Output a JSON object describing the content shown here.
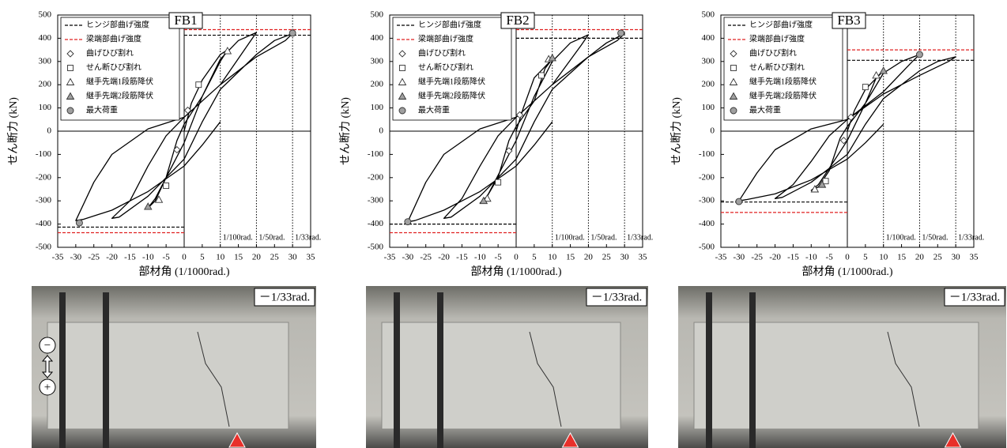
{
  "chart_data": [
    {
      "type": "hysteresis",
      "title": "FB1",
      "xlabel": "部材角 (1/1000rad.)",
      "ylabel": "せん断力 (kN)",
      "xlim": [
        -35,
        35
      ],
      "xticks": [
        -35,
        -30,
        -25,
        -20,
        -15,
        -10,
        -5,
        0,
        5,
        10,
        15,
        20,
        25,
        30,
        35
      ],
      "ylim": [
        -500,
        500
      ],
      "yticks": [
        -500,
        -400,
        -300,
        -200,
        -100,
        0,
        100,
        200,
        300,
        400,
        500
      ],
      "ref_lines": [
        {
          "name": "ヒンジ部曲げ強度",
          "color": "#000000",
          "values": [
            413,
            -413
          ]
        },
        {
          "name": "梁端部曲げ強度",
          "color": "#e02020",
          "values": [
            437,
            -437
          ]
        }
      ],
      "vlines": [
        {
          "x": 10,
          "label": "1/100rad."
        },
        {
          "x": 20,
          "label": "1/50rad."
        },
        {
          "x": 30,
          "label": "1/33rad."
        }
      ],
      "curve": {
        "color": "#000000",
        "x": [
          0,
          2,
          5,
          10,
          12,
          10,
          5,
          0,
          -2,
          -5,
          -8,
          -10,
          -8,
          -5,
          0,
          5,
          10,
          15,
          20,
          18,
          10,
          0,
          -5,
          -10,
          -15,
          -20,
          -18,
          -10,
          0,
          5,
          10,
          20,
          25,
          30,
          28,
          20,
          10,
          0,
          -10,
          -20,
          -25,
          -30,
          -28,
          -20,
          -10,
          0,
          5,
          10
        ],
        "values": [
          0,
          120,
          220,
          330,
          350,
          300,
          150,
          30,
          -40,
          -200,
          -290,
          -330,
          -300,
          -200,
          -50,
          150,
          310,
          390,
          425,
          380,
          200,
          60,
          -20,
          -150,
          -300,
          -375,
          -370,
          -280,
          -120,
          40,
          180,
          330,
          390,
          420,
          390,
          320,
          200,
          60,
          10,
          -100,
          -220,
          -385,
          -380,
          -340,
          -260,
          -150,
          -60,
          40
        ]
      },
      "series": [
        {
          "name": "曲げひび割れ",
          "marker": "diamond",
          "color": "#ffffff",
          "x": [
            1,
            -2
          ],
          "values": [
            90,
            -80
          ]
        },
        {
          "name": "せん断ひび割れ",
          "marker": "square",
          "color": "#ffffff",
          "x": [
            4,
            -5
          ],
          "values": [
            200,
            -235
          ]
        },
        {
          "name": "継手先端1段筋降伏",
          "marker": "triangle",
          "color": "#ffffff",
          "x": [
            12,
            -7
          ],
          "values": [
            345,
            -295
          ]
        },
        {
          "name": "継手先端2段筋降伏",
          "marker": "triangle",
          "color": "#a0a0a0",
          "x": [
            -10
          ],
          "values": [
            -325
          ]
        },
        {
          "name": "最大荷重",
          "marker": "circle",
          "color": "#a0a0a0",
          "x": [
            30,
            -29
          ],
          "values": [
            422,
            -395
          ]
        }
      ]
    },
    {
      "type": "hysteresis",
      "title": "FB2",
      "xlabel": "部材角 (1/1000rad.)",
      "ylabel": "せん断力 (kN)",
      "xlim": [
        -35,
        35
      ],
      "xticks": [
        -35,
        -30,
        -25,
        -20,
        -15,
        -10,
        -5,
        0,
        5,
        10,
        15,
        20,
        25,
        30,
        35
      ],
      "ylim": [
        -500,
        500
      ],
      "yticks": [
        -500,
        -400,
        -300,
        -200,
        -100,
        0,
        100,
        200,
        300,
        400,
        500
      ],
      "ref_lines": [
        {
          "name": "ヒンジ部曲げ強度",
          "color": "#000000",
          "values": [
            400,
            -400
          ]
        },
        {
          "name": "梁端部曲げ強度",
          "color": "#e02020",
          "values": [
            437,
            -437
          ]
        }
      ],
      "vlines": [
        {
          "x": 10,
          "label": "1/100rad."
        },
        {
          "x": 20,
          "label": "1/50rad."
        },
        {
          "x": 30,
          "label": "1/33rad."
        }
      ],
      "curve": {
        "color": "#000000",
        "x": [
          0,
          2,
          5,
          10,
          8,
          5,
          0,
          -2,
          -5,
          -8,
          -10,
          -8,
          -5,
          0,
          5,
          10,
          15,
          20,
          18,
          10,
          0,
          -5,
          -10,
          -15,
          -20,
          -18,
          -10,
          0,
          5,
          10,
          20,
          25,
          30,
          28,
          20,
          10,
          0,
          -10,
          -20,
          -25,
          -30,
          -28,
          -20,
          -10,
          0,
          5,
          10
        ],
        "values": [
          0,
          100,
          230,
          310,
          270,
          130,
          20,
          -40,
          -200,
          -280,
          -310,
          -280,
          -190,
          -40,
          150,
          300,
          380,
          415,
          370,
          200,
          60,
          -20,
          -150,
          -290,
          -375,
          -370,
          -280,
          -120,
          40,
          180,
          320,
          380,
          420,
          390,
          320,
          200,
          60,
          10,
          -100,
          -220,
          -390,
          -385,
          -340,
          -260,
          -150,
          -60,
          40
        ]
      },
      "series": [
        {
          "name": "曲げひび割れ",
          "marker": "diamond",
          "color": "#ffffff",
          "x": [
            1,
            -2
          ],
          "values": [
            70,
            -85
          ]
        },
        {
          "name": "せん断ひび割れ",
          "marker": "square",
          "color": "#ffffff",
          "x": [
            7,
            -5
          ],
          "values": [
            240,
            -220
          ]
        },
        {
          "name": "継手先端1段筋降伏",
          "marker": "triangle",
          "color": "#ffffff",
          "x": [
            9,
            -8
          ],
          "values": [
            310,
            -290
          ]
        },
        {
          "name": "継手先端2段筋降伏",
          "marker": "triangle",
          "color": "#a0a0a0",
          "x": [
            10,
            -9
          ],
          "values": [
            315,
            -300
          ]
        },
        {
          "name": "最大荷重",
          "marker": "circle",
          "color": "#a0a0a0",
          "x": [
            29,
            -30
          ],
          "values": [
            422,
            -390
          ]
        }
      ]
    },
    {
      "type": "hysteresis",
      "title": "FB3",
      "xlabel": "部材角 (1/1000rad.)",
      "ylabel": "せん断力 (kN)",
      "xlim": [
        -35,
        35
      ],
      "xticks": [
        -35,
        -30,
        -25,
        -20,
        -15,
        -10,
        -5,
        0,
        5,
        10,
        15,
        20,
        25,
        30,
        35
      ],
      "ylim": [
        -500,
        500
      ],
      "yticks": [
        -500,
        -400,
        -300,
        -200,
        -100,
        0,
        100,
        200,
        300,
        400,
        500
      ],
      "ref_lines": [
        {
          "name": "ヒンジ部曲げ強度",
          "color": "#000000",
          "values": [
            305,
            -305
          ]
        },
        {
          "name": "梁端部曲げ強度",
          "color": "#e02020",
          "values": [
            350,
            -350
          ]
        }
      ],
      "vlines": [
        {
          "x": 10,
          "label": "1/100rad."
        },
        {
          "x": 20,
          "label": "1/50rad."
        },
        {
          "x": 30,
          "label": "1/33rad."
        }
      ],
      "curve": {
        "color": "#000000",
        "x": [
          0,
          2,
          5,
          10,
          8,
          5,
          0,
          -2,
          -5,
          -8,
          -10,
          -8,
          -5,
          0,
          5,
          10,
          15,
          20,
          18,
          10,
          0,
          -5,
          -10,
          -15,
          -20,
          -18,
          -10,
          0,
          5,
          10,
          20,
          25,
          30,
          28,
          20,
          10,
          0,
          -10,
          -20,
          -25,
          -30,
          -28,
          -20,
          -10,
          0,
          5,
          10
        ],
        "values": [
          0,
          90,
          180,
          260,
          230,
          120,
          20,
          -30,
          -170,
          -240,
          -255,
          -230,
          -160,
          -40,
          120,
          250,
          300,
          330,
          300,
          170,
          50,
          -20,
          -130,
          -230,
          -290,
          -285,
          -220,
          -100,
          30,
          140,
          260,
          300,
          320,
          300,
          240,
          160,
          50,
          10,
          -80,
          -180,
          -300,
          -295,
          -270,
          -210,
          -120,
          -50,
          30
        ]
      },
      "series": [
        {
          "name": "曲げひび割れ",
          "marker": "diamond",
          "color": "#ffffff",
          "x": [
            1,
            -1
          ],
          "values": [
            60,
            -40
          ]
        },
        {
          "name": "せん断ひび割れ",
          "marker": "square",
          "color": "#ffffff",
          "x": [
            5,
            -6
          ],
          "values": [
            190,
            -215
          ]
        },
        {
          "name": "継手先端1段筋降伏",
          "marker": "triangle",
          "color": "#ffffff",
          "x": [
            8,
            -9
          ],
          "values": [
            240,
            -250
          ]
        },
        {
          "name": "継手先端2段筋降伏",
          "marker": "triangle",
          "color": "#a0a0a0",
          "x": [
            10,
            -7
          ],
          "values": [
            260,
            -230
          ]
        },
        {
          "name": "最大荷重",
          "marker": "circle",
          "color": "#a0a0a0",
          "x": [
            20,
            -30
          ],
          "values": [
            330,
            -303
          ]
        }
      ]
    }
  ],
  "photos": [
    {
      "label": "－1/33rad.",
      "symbols": [
        "−",
        "+"
      ]
    },
    {
      "label": "－1/33rad."
    },
    {
      "label": "－1/33rad."
    }
  ]
}
